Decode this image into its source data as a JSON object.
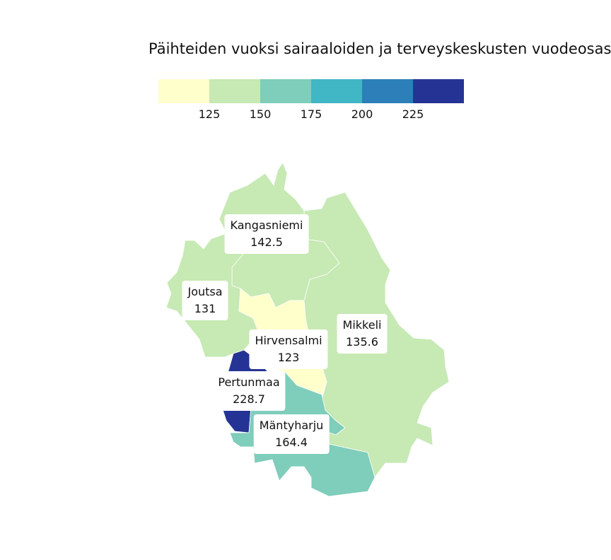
{
  "title": "Päihteiden vuoksi sairaaloiden ja terveyskeskusten vuodeosast",
  "legend": {
    "colors": [
      "#ffffcc",
      "#c7e9b4",
      "#7fcdbb",
      "#41b6c4",
      "#2c7fb8",
      "#253494"
    ],
    "ticks": [
      "125",
      "150",
      "175",
      "200",
      "225"
    ]
  },
  "regions": [
    {
      "name": "Kangasniemi",
      "value": "142.5",
      "color": "#c7e9b4"
    },
    {
      "name": "Joutsa",
      "value": "131",
      "color": "#c7e9b4"
    },
    {
      "name": "Mikkeli",
      "value": "135.6",
      "color": "#c7e9b4"
    },
    {
      "name": "Hirvensalmi",
      "value": "123",
      "color": "#ffffcc"
    },
    {
      "name": "Pertunmaa",
      "value": "228.7",
      "color": "#253494"
    },
    {
      "name": "Mäntyharju",
      "value": "164.4",
      "color": "#7fcdbb"
    }
  ]
}
